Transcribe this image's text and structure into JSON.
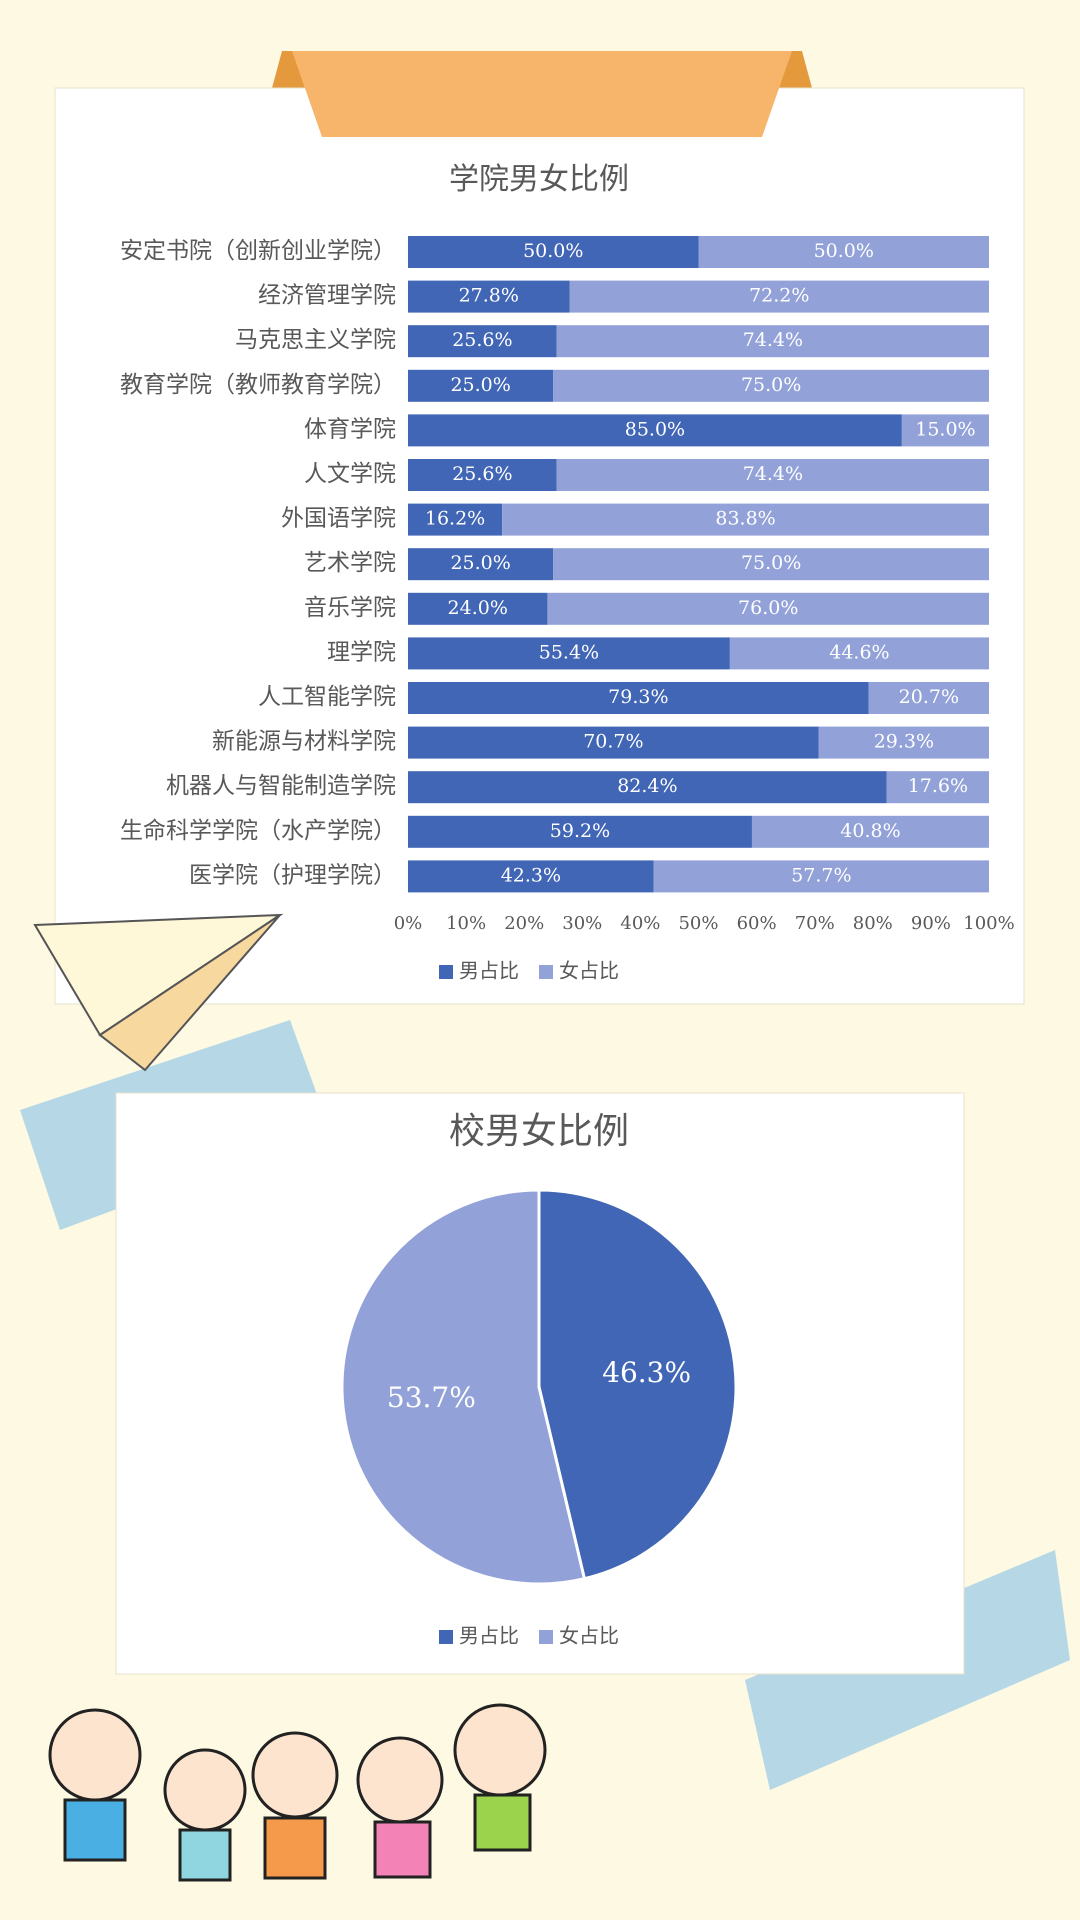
{
  "chart_data": [
    {
      "type": "stacked-bar-horizontal",
      "title": "学院男女比例",
      "categories": [
        "安定书院（创新创业学院）",
        "经济管理学院",
        "马克思主义学院",
        "教育学院（教师教育学院）",
        "体育学院",
        "人文学院",
        "外国语学院",
        "艺术学院",
        "音乐学院",
        "理学院",
        "人工智能学院",
        "新能源与材料学院",
        "机器人与智能制造学院",
        "生命科学学院（水产学院）",
        "医学院（护理学院）"
      ],
      "series": [
        {
          "name": "男占比",
          "color": "#4166b5",
          "values": [
            50.0,
            27.8,
            25.6,
            25.0,
            85.0,
            25.6,
            16.2,
            25.0,
            24.0,
            55.4,
            79.3,
            70.7,
            82.4,
            59.2,
            42.3
          ],
          "value_labels": [
            "50.0%",
            "27.8%",
            "25.6%",
            "25.0%",
            "85.0%",
            "25.6%",
            "16.2%",
            "25.0%",
            "24.0%",
            "55.4%",
            "79.3%",
            "70.7%",
            "82.4%",
            "59.2%",
            "42.3%"
          ]
        },
        {
          "name": "女占比",
          "color": "#92a2d8",
          "values": [
            50.0,
            72.2,
            74.4,
            75.0,
            15.0,
            74.4,
            83.8,
            75.0,
            76.0,
            44.6,
            20.7,
            29.3,
            17.6,
            40.8,
            57.7
          ],
          "value_labels": [
            "50.0%",
            "72.2%",
            "74.4%",
            "75.0%",
            "15.0%",
            "74.4%",
            "83.8%",
            "75.0%",
            "76.0%",
            "44.6%",
            "20.7%",
            "29.3%",
            "17.6%",
            "40.8%",
            "57.7%"
          ]
        }
      ],
      "xlim": [
        0,
        100
      ],
      "xticks": [
        {
          "value": 0,
          "label": "0%"
        },
        {
          "value": 10,
          "label": "10%"
        },
        {
          "value": 20,
          "label": "20%"
        },
        {
          "value": 30,
          "label": "30%"
        },
        {
          "value": 40,
          "label": "40%"
        },
        {
          "value": 50,
          "label": "50%"
        },
        {
          "value": 60,
          "label": "60%"
        },
        {
          "value": 70,
          "label": "70%"
        },
        {
          "value": 80,
          "label": "80%"
        },
        {
          "value": 90,
          "label": "90%"
        },
        {
          "value": 100,
          "label": "100%"
        }
      ],
      "legend": "bottom"
    },
    {
      "type": "pie",
      "title": "校男女比例",
      "categories": [
        "男占比",
        "女占比"
      ],
      "values": [
        46.3,
        53.7
      ],
      "value_labels": [
        "46.3%",
        "53.7%"
      ],
      "colors": [
        "#4166b5",
        "#92a2d8"
      ],
      "legend": "bottom"
    }
  ]
}
